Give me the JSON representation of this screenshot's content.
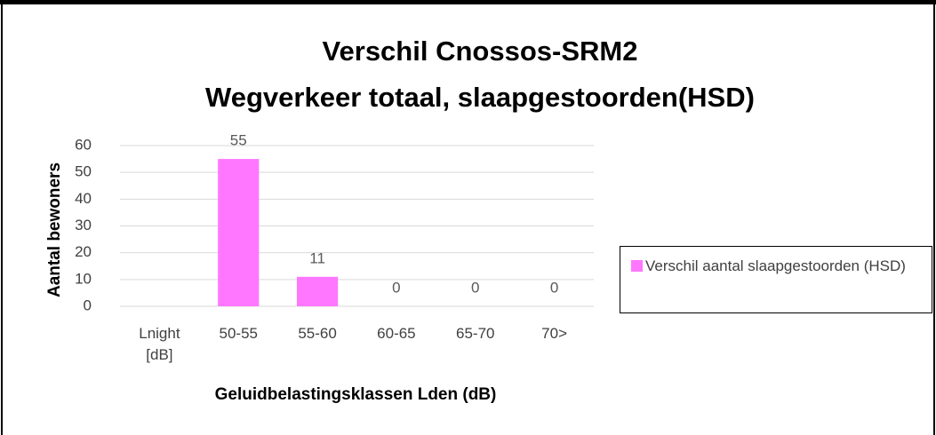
{
  "chart_data": {
    "type": "bar",
    "title": [
      "Verschil Cnossos-SRM2",
      "Wegverkeer totaal, slaapgestoorden(HSD)"
    ],
    "x_label": "Geluidbelastingsklassen Lden (dB)",
    "y_label": "Aantal bewoners",
    "categories": [
      "Lnight [dB]",
      "50-55",
      "55-60",
      "60-65",
      "65-70",
      "70>"
    ],
    "series": [
      {
        "name": "Verschil aantal slaapgestoorden (HSD)",
        "color": "#ff77ff",
        "values": [
          null,
          55,
          11,
          0,
          0,
          0
        ]
      }
    ],
    "ylim": [
      0,
      60
    ],
    "yticks": [
      0,
      10,
      20,
      30,
      40,
      50,
      60
    ],
    "grid": true,
    "legend": "right"
  }
}
